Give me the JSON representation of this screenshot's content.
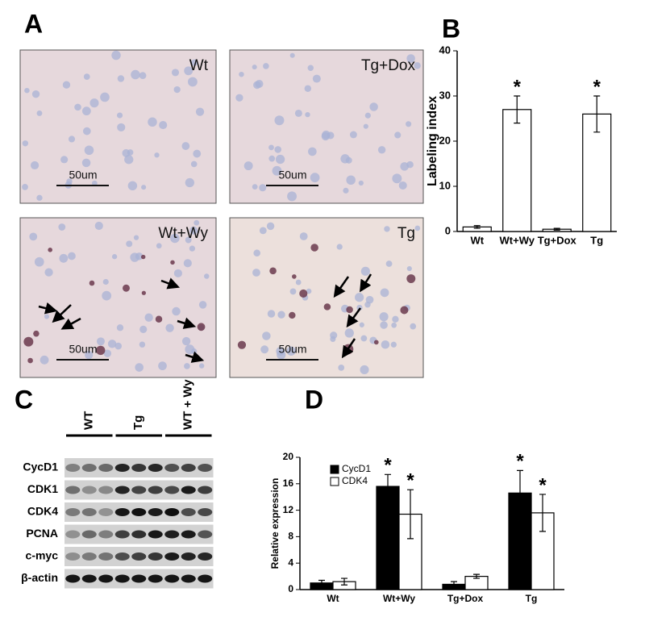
{
  "panel_labels": [
    "A",
    "B",
    "C",
    "D"
  ],
  "micrographs": [
    {
      "label": "Wt",
      "scale_bar": "50um"
    },
    {
      "label": "Tg+Dox",
      "scale_bar": "50um"
    },
    {
      "label": "Wt+Wy",
      "scale_bar": "50um"
    },
    {
      "label": "Tg",
      "scale_bar": "50um"
    }
  ],
  "blot": {
    "groups": [
      "WT",
      "Tg",
      "WT + Wy"
    ],
    "rows": [
      "CycD1",
      "CDK1",
      "CDK4",
      "PCNA",
      "c-myc",
      "β-actin"
    ]
  },
  "chart_data": [
    {
      "type": "bar",
      "y_label": "Labeling index",
      "categories": [
        "Wt",
        "Wt+Wy",
        "Tg+Dox",
        "Tg"
      ],
      "values": [
        1,
        27,
        0.5,
        26
      ],
      "errors": [
        0.3,
        3,
        0.2,
        4
      ],
      "annotations": [
        null,
        "*",
        null,
        "*"
      ],
      "color": "#ffffff",
      "ylim": [
        0,
        40
      ],
      "yticks": [
        0,
        10,
        20,
        30,
        40
      ]
    },
    {
      "type": "bar",
      "y_label": "Relative expression",
      "categories": [
        "Wt",
        "Wt+Wy",
        "Tg+Dox",
        "Tg"
      ],
      "series": [
        {
          "name": "CycD1",
          "color": "#000000",
          "values": [
            1,
            15.6,
            0.8,
            14.6
          ],
          "errors": [
            0.4,
            1.8,
            0.4,
            3.4
          ],
          "annotations": [
            null,
            "*",
            null,
            "*"
          ]
        },
        {
          "name": "CDK4",
          "color": "#ffffff",
          "values": [
            1.2,
            11.4,
            2,
            11.6
          ],
          "errors": [
            0.5,
            3.7,
            0.3,
            2.8
          ],
          "annotations": [
            null,
            "*",
            null,
            "*"
          ]
        }
      ],
      "ylim": [
        0,
        20
      ],
      "yticks": [
        0,
        4,
        8,
        12,
        16,
        20
      ]
    }
  ]
}
